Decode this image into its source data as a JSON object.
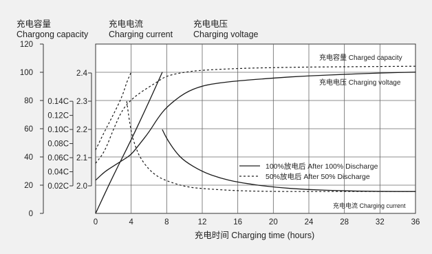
{
  "chart_data": {
    "type": "line",
    "axes": {
      "capacity": {
        "label_cn": "充电容量",
        "label_en": "Chargong capacity",
        "ticks": [
          0,
          20,
          40,
          60,
          80,
          100,
          120
        ],
        "range": [
          0,
          120
        ]
      },
      "current": {
        "label_cn": "充电电流",
        "label_en": "Charging current",
        "ticks": [
          "0.02C",
          "0.04C",
          "0.06C",
          "0.08C",
          "0.10C",
          "0.12C",
          "0.14C"
        ],
        "values": [
          0.02,
          0.04,
          0.06,
          0.08,
          0.1,
          0.12,
          0.14
        ]
      },
      "voltage": {
        "label_cn": "充电电压",
        "label_en": "Charging voltage",
        "ticks": [
          "2.0",
          "2.1",
          "2.2",
          "2.3",
          "2.4"
        ],
        "values": [
          2.0,
          2.1,
          2.2,
          2.3,
          2.4
        ]
      },
      "time": {
        "label": "充电时间 Charging time (hours)",
        "ticks": [
          0,
          4,
          8,
          12,
          16,
          20,
          24,
          28,
          32,
          36
        ],
        "range": [
          0,
          36
        ]
      }
    },
    "annotations": {
      "capacity": "充电容量 Charged capacity",
      "voltage": "充电电压 Charging voltage",
      "current": "充电电流 Charging current"
    },
    "legend": [
      {
        "label": "100%放电后 After 100% Discharge",
        "style": "solid"
      },
      {
        "label": "50%放电后 After 50% Discharge",
        "style": "dashed"
      }
    ],
    "series": [
      {
        "kind": "capacity",
        "style": "solid",
        "x": [
          0,
          2,
          4,
          6,
          7.5
        ],
        "y": [
          0,
          27,
          52,
          79,
          100
        ]
      },
      {
        "kind": "capacity",
        "style": "dashed",
        "x": [
          0,
          1,
          2,
          3,
          3.5,
          4
        ],
        "y": [
          45,
          58,
          70,
          83,
          93,
          100
        ]
      },
      {
        "kind": "voltage",
        "style": "solid",
        "x": [
          0,
          1,
          2,
          3,
          4,
          5,
          6,
          7,
          8,
          10,
          12,
          14,
          16,
          20,
          24,
          28,
          32,
          36
        ],
        "y": [
          2.02,
          2.05,
          2.07,
          2.09,
          2.11,
          2.15,
          2.19,
          2.24,
          2.28,
          2.33,
          2.355,
          2.365,
          2.372,
          2.382,
          2.39,
          2.395,
          2.4,
          2.403
        ]
      },
      {
        "kind": "voltage",
        "style": "dashed",
        "x": [
          0,
          1,
          2,
          3,
          4,
          5,
          6,
          7,
          8,
          10,
          12,
          16,
          20,
          24,
          28,
          32,
          36
        ],
        "y": [
          2.08,
          2.12,
          2.2,
          2.27,
          2.305,
          2.33,
          2.35,
          2.37,
          2.39,
          2.403,
          2.41,
          2.416,
          2.419,
          2.421,
          2.422,
          2.423,
          2.424
        ]
      },
      {
        "kind": "current",
        "style": "solid",
        "x": [
          7.5,
          8,
          9,
          10,
          12,
          14,
          16,
          20,
          24,
          28,
          32,
          36
        ],
        "y": [
          0.1,
          0.087,
          0.068,
          0.055,
          0.04,
          0.031,
          0.025,
          0.018,
          0.0145,
          0.013,
          0.012,
          0.012
        ]
      },
      {
        "kind": "current",
        "style": "dashed",
        "x": [
          3.5,
          4,
          4.5,
          5,
          6,
          7,
          8,
          10,
          12,
          16,
          20,
          24,
          28,
          32,
          36
        ],
        "y": [
          0.14,
          0.095,
          0.075,
          0.06,
          0.043,
          0.033,
          0.027,
          0.019,
          0.016,
          0.013,
          0.012,
          0.012,
          0.012,
          0.012,
          0.012
        ]
      }
    ]
  }
}
